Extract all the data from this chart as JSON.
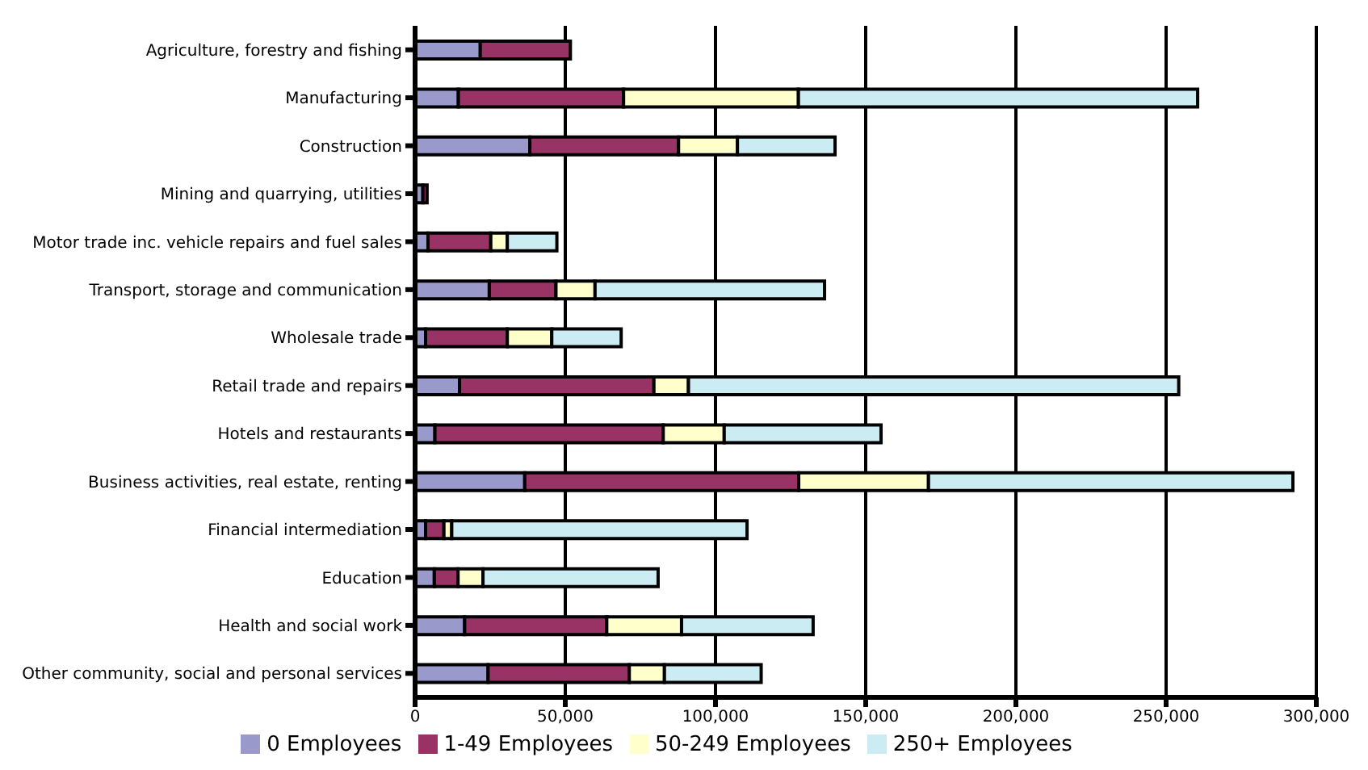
{
  "chart_data": {
    "type": "bar",
    "orientation": "horizontal",
    "stacked": true,
    "categories": [
      "Agriculture, forestry and fishing",
      "Manufacturing",
      "Construction",
      "Mining and quarrying, utilities",
      "Motor trade inc. vehicle repairs and fuel sales",
      "Transport, storage and communication",
      "Wholesale trade",
      "Retail trade and repairs",
      "Hotels and restaurants",
      "Business activities, real estate, renting",
      "Financial intermediation",
      "Education",
      "Health and social work",
      "Other community, social and personal services"
    ],
    "series": [
      {
        "name": "0 Employees",
        "color": "#9999cc",
        "values": [
          21700,
          14400,
          38200,
          2600,
          4300,
          24700,
          3500,
          14800,
          6600,
          36500,
          3500,
          6400,
          16500,
          24300
        ]
      },
      {
        "name": "1-49 Employees",
        "color": "#993366",
        "values": [
          30000,
          55000,
          49500,
          1400,
          20900,
          22200,
          27200,
          64700,
          76000,
          91200,
          6100,
          7900,
          47300,
          47000
        ]
      },
      {
        "name": "50-249 Employees",
        "color": "#ffffcc",
        "values": [
          null,
          58200,
          19600,
          null,
          5500,
          13000,
          14800,
          11500,
          20300,
          43200,
          2600,
          8300,
          24900,
          11700
        ]
      },
      {
        "name": "250+ Employees",
        "color": "#ccecf4",
        "values": [
          null,
          132900,
          32500,
          null,
          16500,
          76400,
          23100,
          163200,
          52200,
          121300,
          98300,
          58300,
          43800,
          32200
        ]
      }
    ],
    "xlim": [
      0,
      300000
    ],
    "xticks": [
      0,
      {
        "value": 50000,
        "label": "50,000"
      },
      {
        "value": 100000,
        "label": "100,000"
      },
      {
        "value": 150000,
        "label": "150,000"
      },
      {
        "value": 200000,
        "label": "200,000"
      },
      {
        "value": 250000,
        "label": "250,000"
      },
      {
        "value": 300000,
        "label": "300,000"
      }
    ],
    "grid": "x",
    "legend": "bottom"
  }
}
